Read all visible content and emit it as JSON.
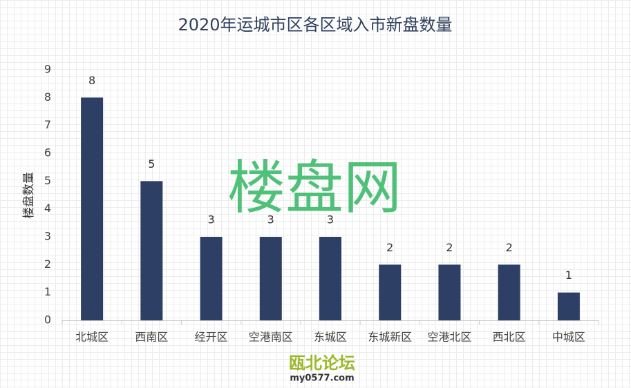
{
  "chart_data": {
    "type": "bar",
    "title": "2020年运城市区各区域入市新盘数量",
    "y_label": "楼盘数量",
    "categories": [
      "北城区",
      "西南区",
      "经开区",
      "空港南区",
      "东城区",
      "东城新区",
      "空港北区",
      "西北区",
      "中城区"
    ],
    "values": [
      8,
      5,
      3,
      3,
      3,
      2,
      2,
      2,
      1
    ],
    "color": "#2e3f66",
    "ylim": [
      0,
      9
    ],
    "yticks": [
      0,
      1,
      2,
      3,
      4,
      5,
      6,
      7,
      8,
      9
    ],
    "grid": false,
    "watermark": "楼盘网",
    "logo_text": "瓯北论坛",
    "logo_url": "my0577.com"
  }
}
